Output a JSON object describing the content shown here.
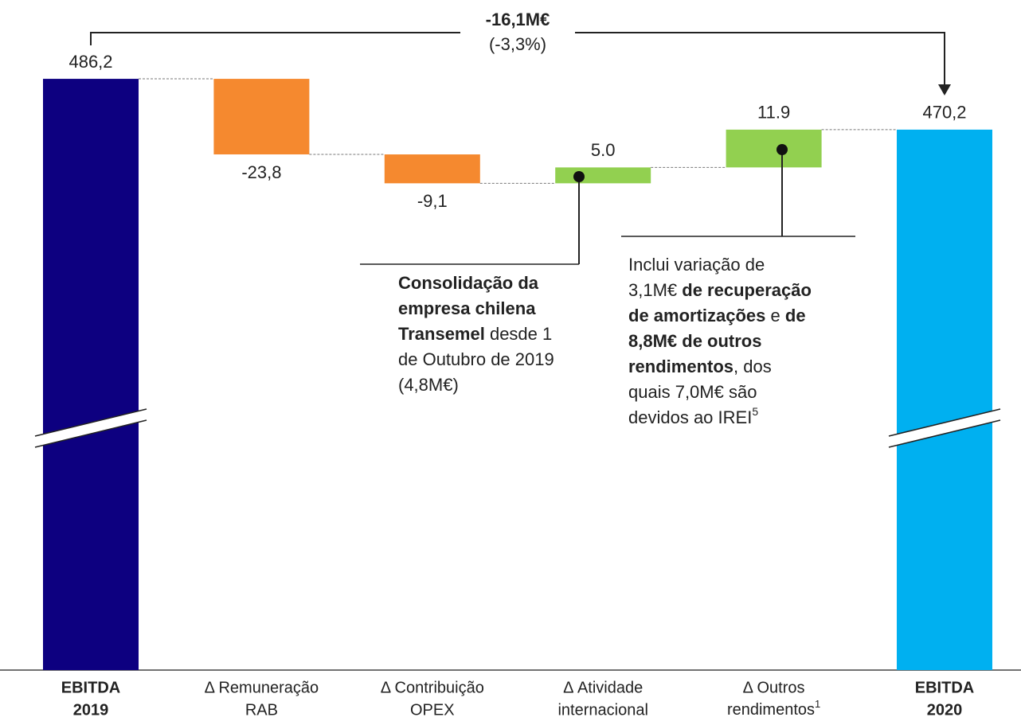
{
  "chart_data": {
    "type": "waterfall",
    "title": "-16,1M€",
    "subtitle": "(-3,3%)",
    "categories": [
      [
        "EBITDA",
        "2019"
      ],
      [
        "Δ Remuneração",
        "RAB"
      ],
      [
        "Δ Contribuição",
        "OPEX"
      ],
      [
        "Δ Atividade",
        "internacional"
      ],
      [
        "Δ Outros",
        "rendimentos"
      ],
      [
        "EBITDA",
        "2020"
      ]
    ],
    "category_notes": [
      null,
      null,
      null,
      null,
      "1",
      null
    ],
    "values": [
      486.2,
      -23.8,
      -9.1,
      5.0,
      11.9,
      470.2
    ],
    "value_labels": [
      "486,2",
      "-23,8",
      "-9,1",
      "5.0",
      "11.9",
      "470,2"
    ],
    "measure": [
      "total",
      "relative",
      "relative",
      "relative",
      "relative",
      "total"
    ],
    "colors": [
      "#0d0080",
      "#f5892f",
      "#f5892f",
      "#92d050",
      "#92d050",
      "#00b0f0"
    ],
    "ylim": [
      300,
      500
    ],
    "axis_break": true,
    "annotations": [
      {
        "lines": [
          [
            {
              "text": "Consolidação da",
              "bold": true
            }
          ],
          [
            {
              "text": "empresa chilena",
              "bold": true
            }
          ],
          [
            {
              "text": "Transemel",
              "bold": true
            },
            {
              "text": " desde 1",
              "bold": false
            }
          ],
          [
            {
              "text": "de Outubro de 2019",
              "bold": false
            }
          ],
          [
            {
              "text": "(4,8M€)",
              "bold": false
            }
          ]
        ]
      },
      {
        "lines": [
          [
            {
              "text": "Inclui variação de",
              "bold": false
            }
          ],
          [
            {
              "text": "3,1M€ ",
              "bold": false
            },
            {
              "text": "de recuperação",
              "bold": true
            }
          ],
          [
            {
              "text": "de amortizações",
              "bold": true
            },
            {
              "text": " e ",
              "bold": false
            },
            {
              "text": "de",
              "bold": true
            }
          ],
          [
            {
              "text": "8,8M€ de outros",
              "bold": true
            }
          ],
          [
            {
              "text": "rendimentos",
              "bold": true
            },
            {
              "text": ", dos",
              "bold": false
            }
          ],
          [
            {
              "text": "quais 7,0M€ são",
              "bold": false
            }
          ],
          [
            {
              "text": "devidos ao IREI",
              "bold": false
            },
            {
              "text": "5",
              "bold": false,
              "sup": true
            }
          ]
        ]
      }
    ]
  }
}
